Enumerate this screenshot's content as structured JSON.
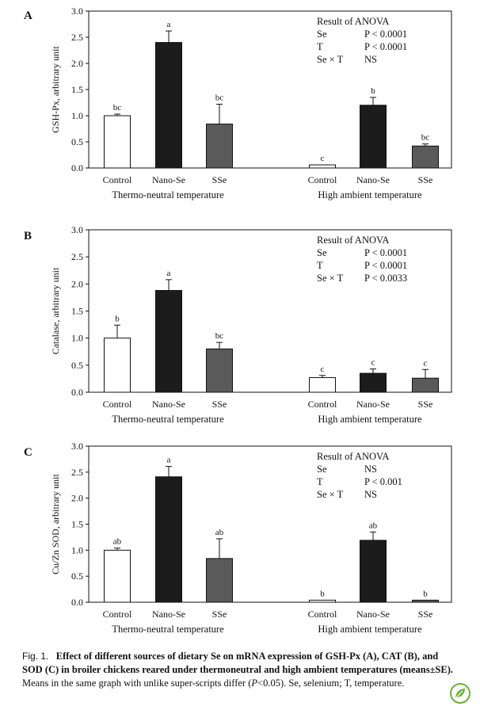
{
  "chart_data": [
    {
      "type": "bar",
      "panel_label": "A",
      "ylabel": "GSH-Px, arbitrary unit",
      "ylim": [
        0,
        3.0
      ],
      "yticks": [
        "0.0",
        "0.5",
        "1.0",
        "1.5",
        "2.0",
        "2.5",
        "3.0"
      ],
      "groups": [
        {
          "name": "Thermo-neutral temperature",
          "categories": [
            "Control",
            "Nano-Se",
            "SSe"
          ],
          "values": [
            1.0,
            2.4,
            0.84
          ],
          "errors": [
            0.03,
            0.22,
            0.38
          ],
          "letters": [
            "bc",
            "a",
            "bc"
          ]
        },
        {
          "name": "High ambient temperature",
          "categories": [
            "Control",
            "Nano-Se",
            "SSe"
          ],
          "values": [
            0.06,
            1.2,
            0.42
          ],
          "errors": [
            0.0,
            0.15,
            0.04
          ],
          "letters": [
            "c",
            "b",
            "bc"
          ]
        }
      ],
      "anova": {
        "title": "Result of ANOVA",
        "rows": [
          [
            "Se",
            "P < 0.0001"
          ],
          [
            "T",
            "P < 0.0001"
          ],
          [
            "Se × T",
            "NS"
          ]
        ]
      }
    },
    {
      "type": "bar",
      "panel_label": "B",
      "ylabel": "Catalase, arbitrary unit",
      "ylim": [
        0,
        3.0
      ],
      "yticks": [
        "0.0",
        "0.5",
        "1.0",
        "1.5",
        "2.0",
        "2.5",
        "3.0"
      ],
      "groups": [
        {
          "name": "Thermo-neutral temperature",
          "categories": [
            "Control",
            "Nano-Se",
            "SSe"
          ],
          "values": [
            1.0,
            1.88,
            0.8
          ],
          "errors": [
            0.24,
            0.2,
            0.12
          ],
          "letters": [
            "b",
            "a",
            "bc"
          ]
        },
        {
          "name": "High ambient temperature",
          "categories": [
            "Control",
            "Nano-Se",
            "SSe"
          ],
          "values": [
            0.27,
            0.35,
            0.26
          ],
          "errors": [
            0.04,
            0.08,
            0.16
          ],
          "letters": [
            "c",
            "c",
            "c"
          ]
        }
      ],
      "anova": {
        "title": "Result of ANOVA",
        "rows": [
          [
            "Se",
            "P < 0.0001"
          ],
          [
            "T",
            "P < 0.0001"
          ],
          [
            "Se × T",
            "P < 0.0033"
          ]
        ]
      }
    },
    {
      "type": "bar",
      "panel_label": "C",
      "ylabel": "Cu/Zn SOD, arbitrary unit",
      "ylim": [
        0,
        3.0
      ],
      "yticks": [
        "0.0",
        "0.5",
        "1.0",
        "1.5",
        "2.0",
        "2.5",
        "3.0"
      ],
      "groups": [
        {
          "name": "Thermo-neutral temperature",
          "categories": [
            "Control",
            "Nano-Se",
            "SSe"
          ],
          "values": [
            1.0,
            2.41,
            0.84
          ],
          "errors": [
            0.04,
            0.2,
            0.38
          ],
          "letters": [
            "ab",
            "a",
            "ab"
          ]
        },
        {
          "name": "High ambient temperature",
          "categories": [
            "Control",
            "Nano-Se",
            "SSe"
          ],
          "values": [
            0.04,
            1.19,
            0.04
          ],
          "errors": [
            0.0,
            0.16,
            0.0
          ],
          "letters": [
            "b",
            "ab",
            "b"
          ]
        }
      ],
      "anova": {
        "title": "Result of ANOVA",
        "rows": [
          [
            "Se",
            "NS"
          ],
          [
            "T",
            "P < 0.001"
          ],
          [
            "Se × T",
            "NS"
          ]
        ]
      }
    }
  ],
  "bar_colors": [
    "#ffffff",
    "#1c1c1c",
    "#5a5a5a"
  ],
  "caption": {
    "fig": "Fig. 1.",
    "bold": "Effect of different sources of dietary Se on mRNA expression of GSH-Px (A), CAT (B), and SOD (C) in broiler chickens reared under thermoneutral and high ambient temperatures (means±SE).",
    "rest1": "Means in the same graph with unlike super-scripts differ (",
    "p_italic": "P",
    "rest2": "<0.05).  Se, selenium; T, temperature."
  }
}
